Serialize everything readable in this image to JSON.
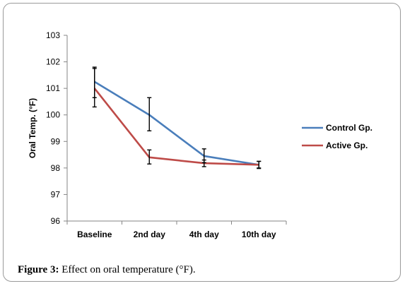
{
  "caption": {
    "label": "Figure 3:",
    "text": "Effect on oral temperature (°F)."
  },
  "colors": {
    "control": "#4A7EBB",
    "active": "#BE4B48",
    "axis": "#868686"
  },
  "chart_data": {
    "type": "line",
    "title": "",
    "xlabel": "",
    "ylabel": "Oral Temp. (°F)",
    "ylim": [
      96,
      103
    ],
    "yticks": [
      96,
      97,
      98,
      99,
      100,
      101,
      102,
      103
    ],
    "grid": false,
    "legend_position": "right",
    "categories": [
      "Baseline",
      "2nd day",
      "4th day",
      "10th day"
    ],
    "series": [
      {
        "name": "Control Gp.",
        "color": "#4A7EBB",
        "values": [
          101.25,
          100.0,
          98.45,
          98.12
        ],
        "error_low": [
          100.65,
          99.4,
          98.2,
          98.0
        ],
        "error_high": [
          101.8,
          100.65,
          98.72,
          98.25
        ]
      },
      {
        "name": "Active Gp.",
        "color": "#BE4B48",
        "values": [
          101.0,
          98.4,
          98.18,
          98.12
        ],
        "error_low": [
          100.3,
          98.15,
          98.05,
          97.98
        ],
        "error_high": [
          101.75,
          98.68,
          98.3,
          98.25
        ]
      }
    ]
  }
}
